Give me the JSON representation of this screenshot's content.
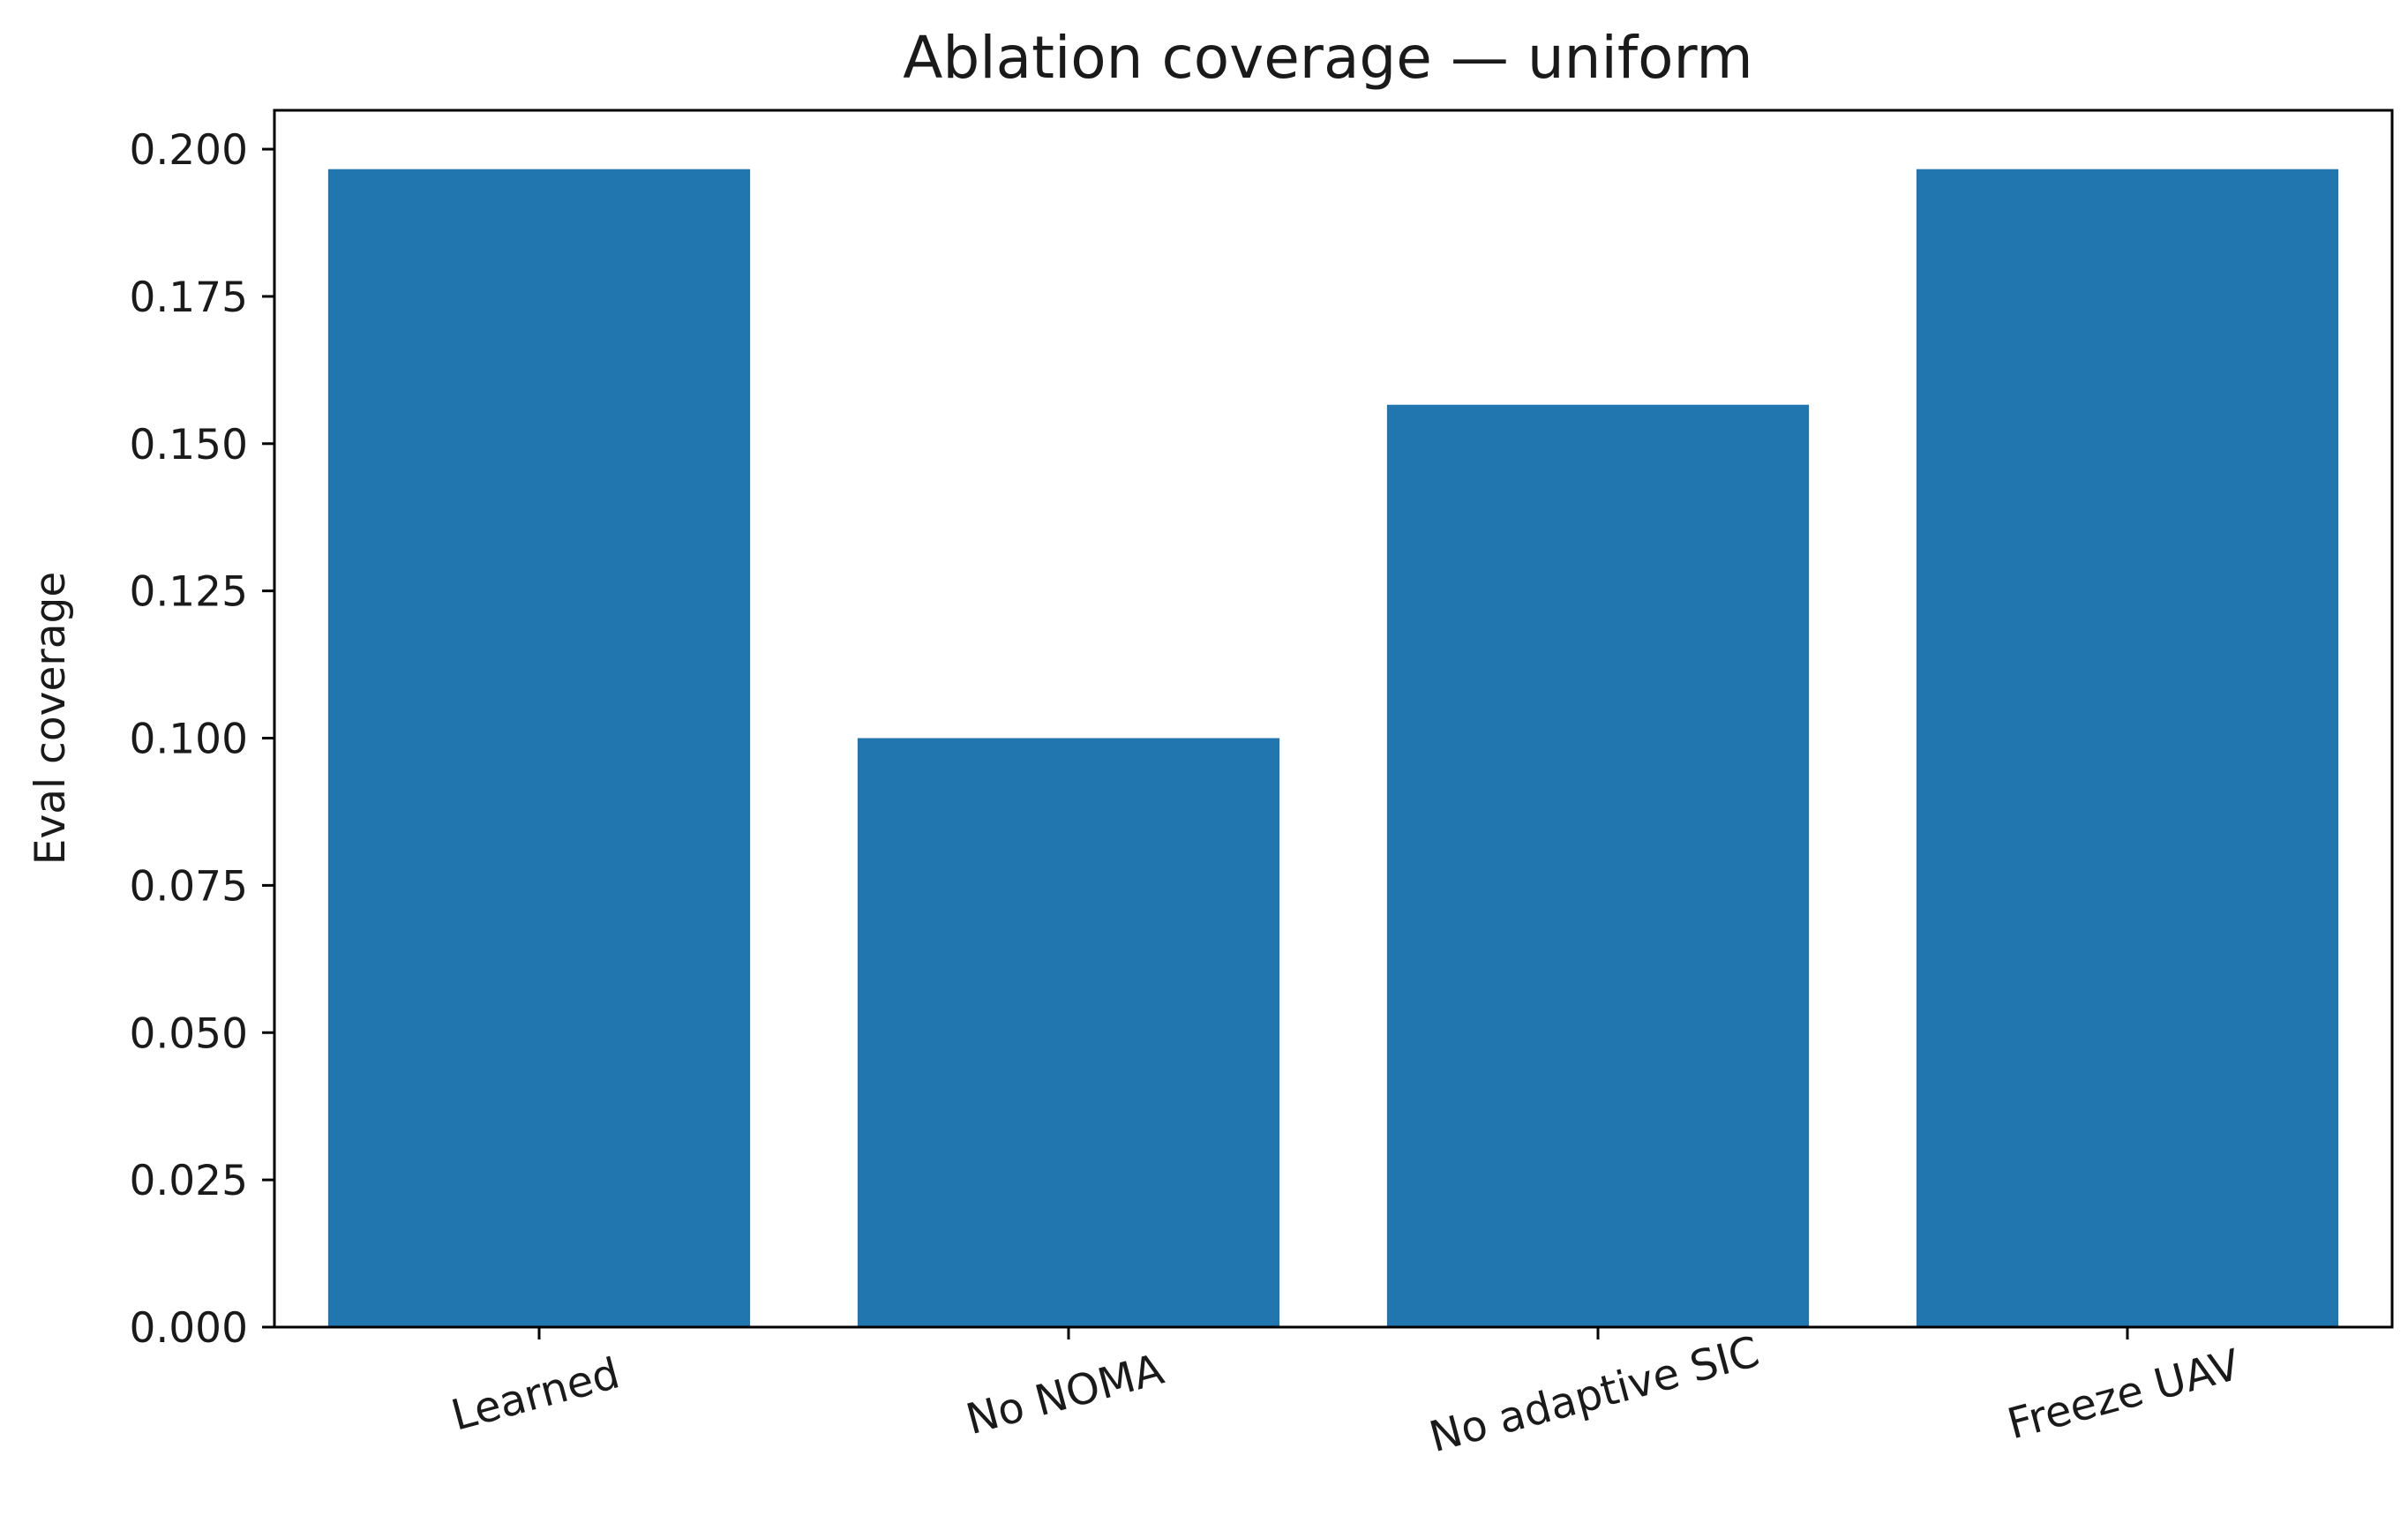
{
  "chart_data": {
    "type": "bar",
    "title": "Ablation coverage — uniform",
    "xlabel": "",
    "ylabel": "Eval coverage",
    "categories": [
      "Learned",
      "No NOMA",
      "No adaptive SIC",
      "Freeze UAV"
    ],
    "values": [
      0.1966,
      0.1,
      0.1566,
      0.1966
    ],
    "ylim": [
      0,
      0.2066
    ],
    "yticks": [
      0.0,
      0.025,
      0.05,
      0.075,
      0.1,
      0.125,
      0.15,
      0.175,
      0.2
    ],
    "ytick_labels": [
      "0.000",
      "0.025",
      "0.050",
      "0.075",
      "0.100",
      "0.125",
      "0.150",
      "0.175",
      "0.200"
    ],
    "bar_color": "#2176b0",
    "grid": false,
    "xtick_rotation_deg": 15
  }
}
